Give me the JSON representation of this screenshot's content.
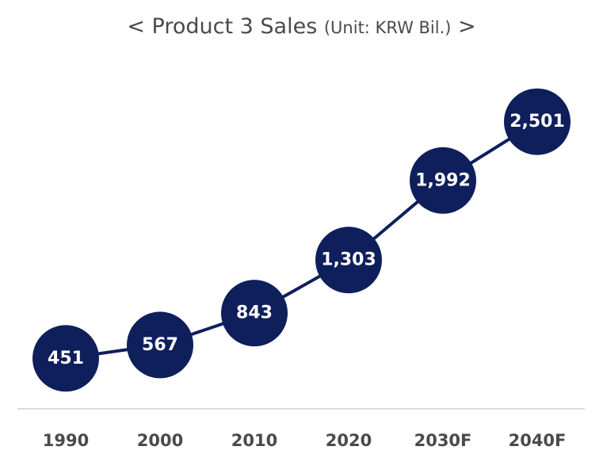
{
  "chart_data": {
    "type": "line",
    "title_prefix": "< Product 3 Sales",
    "title_unit": "(Unit: KRW Bil.)",
    "title_suffix": ">",
    "categories": [
      "1990",
      "2000",
      "2010",
      "2020",
      "2030F",
      "2040F"
    ],
    "values": [
      451,
      567,
      843,
      1303,
      1992,
      2501
    ],
    "value_labels": [
      "451",
      "567",
      "843",
      "1,303",
      "1,992",
      "2,501"
    ],
    "ylim": [
      0,
      2700
    ],
    "grid": false,
    "legend": "none"
  },
  "colors": {
    "series": "#0f1f5c",
    "marker_text": "#ffffff",
    "axis_line": "#cfcfcf",
    "text": "#4a4a4a"
  }
}
